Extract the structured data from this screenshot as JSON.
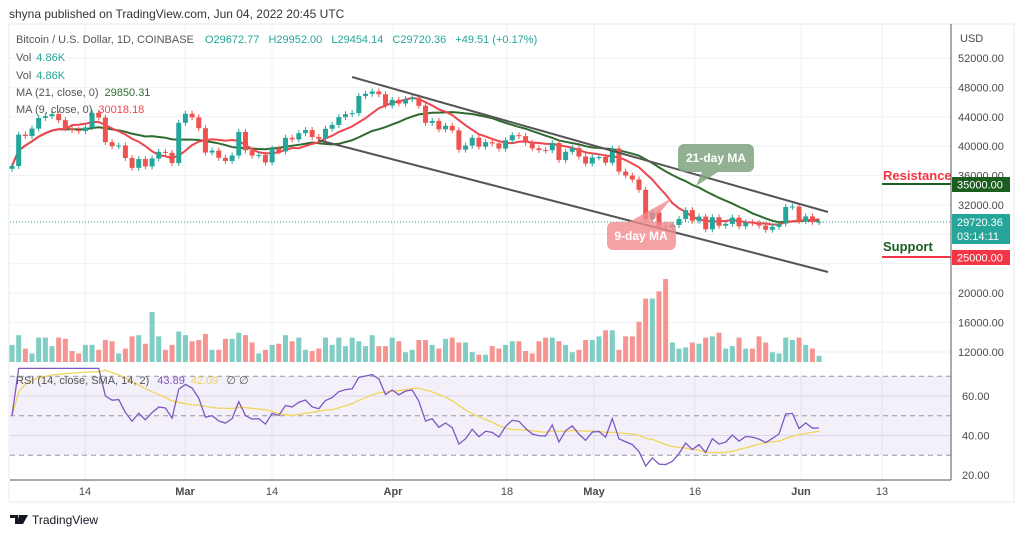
{
  "header": {
    "published": "shyna published on TradingView.com, Jun 04, 2022 20:45 UTC"
  },
  "legend": {
    "symbol": "Bitcoin / U.S. Dollar, 1D, COINBASE",
    "open": "O29672.77",
    "high": "H29952.00",
    "low": "L29454.14",
    "close": "C29720.36",
    "change": "+49.51 (+0.17%)",
    "vol_label": "Vol",
    "vol_value": "4.86K",
    "vol2_label": "Vol",
    "vol2_value": "4.86K",
    "ma21_label": "MA (21, close, 0)",
    "ma21_value": "29850.31",
    "ma9_label": "MA (9, close, 0)",
    "ma9_value": "30018.18",
    "rsi_label": "RSI (14, close, SMA, 14, 2)",
    "rsi_value": "43.89",
    "rsi_sma_value": "42.09",
    "rsi_extra": "∅ ∅"
  },
  "price_axis": {
    "currency": "USD",
    "ticks": [
      "52000.00",
      "48000.00",
      "44000.00",
      "40000.00",
      "36000.00",
      "32000.00",
      "20000.00",
      "16000.00",
      "12000.00"
    ],
    "resistance_tag": "35000.00",
    "current_price": "29720.36",
    "countdown": "03:14:11",
    "support_tag": "25000.00"
  },
  "rsi_axis": {
    "ticks": [
      "60.00",
      "40.00",
      "20.00"
    ]
  },
  "time_axis": {
    "labels": [
      "14",
      "Mar",
      "14",
      "Apr",
      "18",
      "May",
      "16",
      "Jun",
      "13"
    ]
  },
  "annotations": {
    "ma21": "21-day MA",
    "ma9": "9-day MA",
    "resistance": "Resistance",
    "support": "Support"
  },
  "footer": {
    "brand": "TradingView"
  },
  "colors": {
    "up": "#26a69a",
    "down": "#ef5350",
    "ma9": "#f0444f",
    "ma21": "#2f6b2f",
    "rsi": "#7e57c2",
    "rsi_sma": "#f2d55a",
    "resistance": "#f23645",
    "support": "#1b5e20"
  },
  "chart_data": {
    "type": "candlestick",
    "title": "Bitcoin / U.S. Dollar, 1D, COINBASE",
    "start_date": "2022-02-03",
    "ylim": [
      10000,
      54000
    ],
    "close": [
      37300,
      41570,
      41380,
      42400,
      43840,
      44080,
      44370,
      43540,
      42400,
      42200,
      42050,
      42550,
      44550,
      43900,
      40550,
      40000,
      40100,
      38400,
      37050,
      38250,
      37250,
      38330,
      39230,
      39100,
      37700,
      43180,
      44420,
      43920,
      42450,
      39140,
      39400,
      38420,
      37990,
      38730,
      41940,
      39440,
      38730,
      38810,
      37790,
      39670,
      39280,
      41140,
      40920,
      41770,
      42200,
      41260,
      41000,
      42370,
      42890,
      43960,
      44350,
      44500,
      46820,
      47130,
      47450,
      47060,
      45530,
      46300,
      45810,
      46410,
      46580,
      45500,
      43170,
      43440,
      42290,
      42780,
      42160,
      39530,
      40080,
      41150,
      39940,
      40550,
      40380,
      39680,
      40800,
      41500,
      41370,
      40480,
      39710,
      39470,
      39450,
      40430,
      38110,
      39240,
      39740,
      38600,
      37640,
      38470,
      38530,
      37750,
      39690,
      36550,
      36010,
      35470,
      34060,
      30080,
      31000,
      29080,
      28940,
      29280,
      30100,
      31300,
      29860,
      30420,
      28690,
      30330,
      29180,
      29430,
      30280,
      29100,
      29650,
      29540,
      29200,
      28630,
      29030,
      29470,
      31730,
      31800,
      29800,
      30450,
      29700,
      29720
    ],
    "volume_k": [
      14,
      22,
      11,
      7,
      20,
      20,
      13,
      20,
      19,
      9,
      7,
      14,
      14,
      10,
      18,
      17,
      7,
      11,
      21,
      22,
      15,
      41,
      21,
      10,
      14,
      25,
      22,
      17,
      18,
      23,
      10,
      10,
      19,
      19,
      24,
      22,
      16,
      7,
      10,
      14,
      15,
      22,
      17,
      20,
      10,
      9,
      11,
      20,
      14,
      20,
      13,
      20,
      17,
      13,
      22,
      13,
      13,
      20,
      17,
      8,
      10,
      18,
      18,
      14,
      11,
      19,
      20,
      16,
      16,
      8,
      6,
      6,
      13,
      11,
      14,
      17,
      17,
      9,
      7,
      17,
      20,
      20,
      17,
      14,
      8,
      10,
      18,
      18,
      21,
      26,
      26,
      10,
      21,
      21,
      33,
      52,
      52,
      58,
      68,
      16,
      11,
      12,
      16,
      15,
      20,
      21,
      24,
      11,
      13,
      20,
      11,
      11,
      21,
      16,
      8,
      7,
      20,
      18,
      20,
      14,
      11,
      5
    ],
    "last_candle": {
      "open": 29672.77,
      "high": 29952.0,
      "low": 29454.14,
      "close": 29720.36
    },
    "moving_averages": [
      9,
      21
    ],
    "rsi": {
      "period": 14,
      "sma": 14,
      "ylim": [
        20,
        70
      ],
      "bands": [
        30,
        50,
        70
      ]
    },
    "levels": {
      "resistance": 35000,
      "support": 25000,
      "current": 29720.36
    },
    "trendlines": [
      {
        "name": "upper channel",
        "from": [
          "2022-03-28",
          49000
        ],
        "to": [
          "2022-06-05",
          31000
        ]
      },
      {
        "name": "lower channel",
        "from": [
          "2022-03-16",
          40000
        ],
        "to": [
          "2022-06-05",
          23000
        ]
      }
    ],
    "grid": true
  }
}
